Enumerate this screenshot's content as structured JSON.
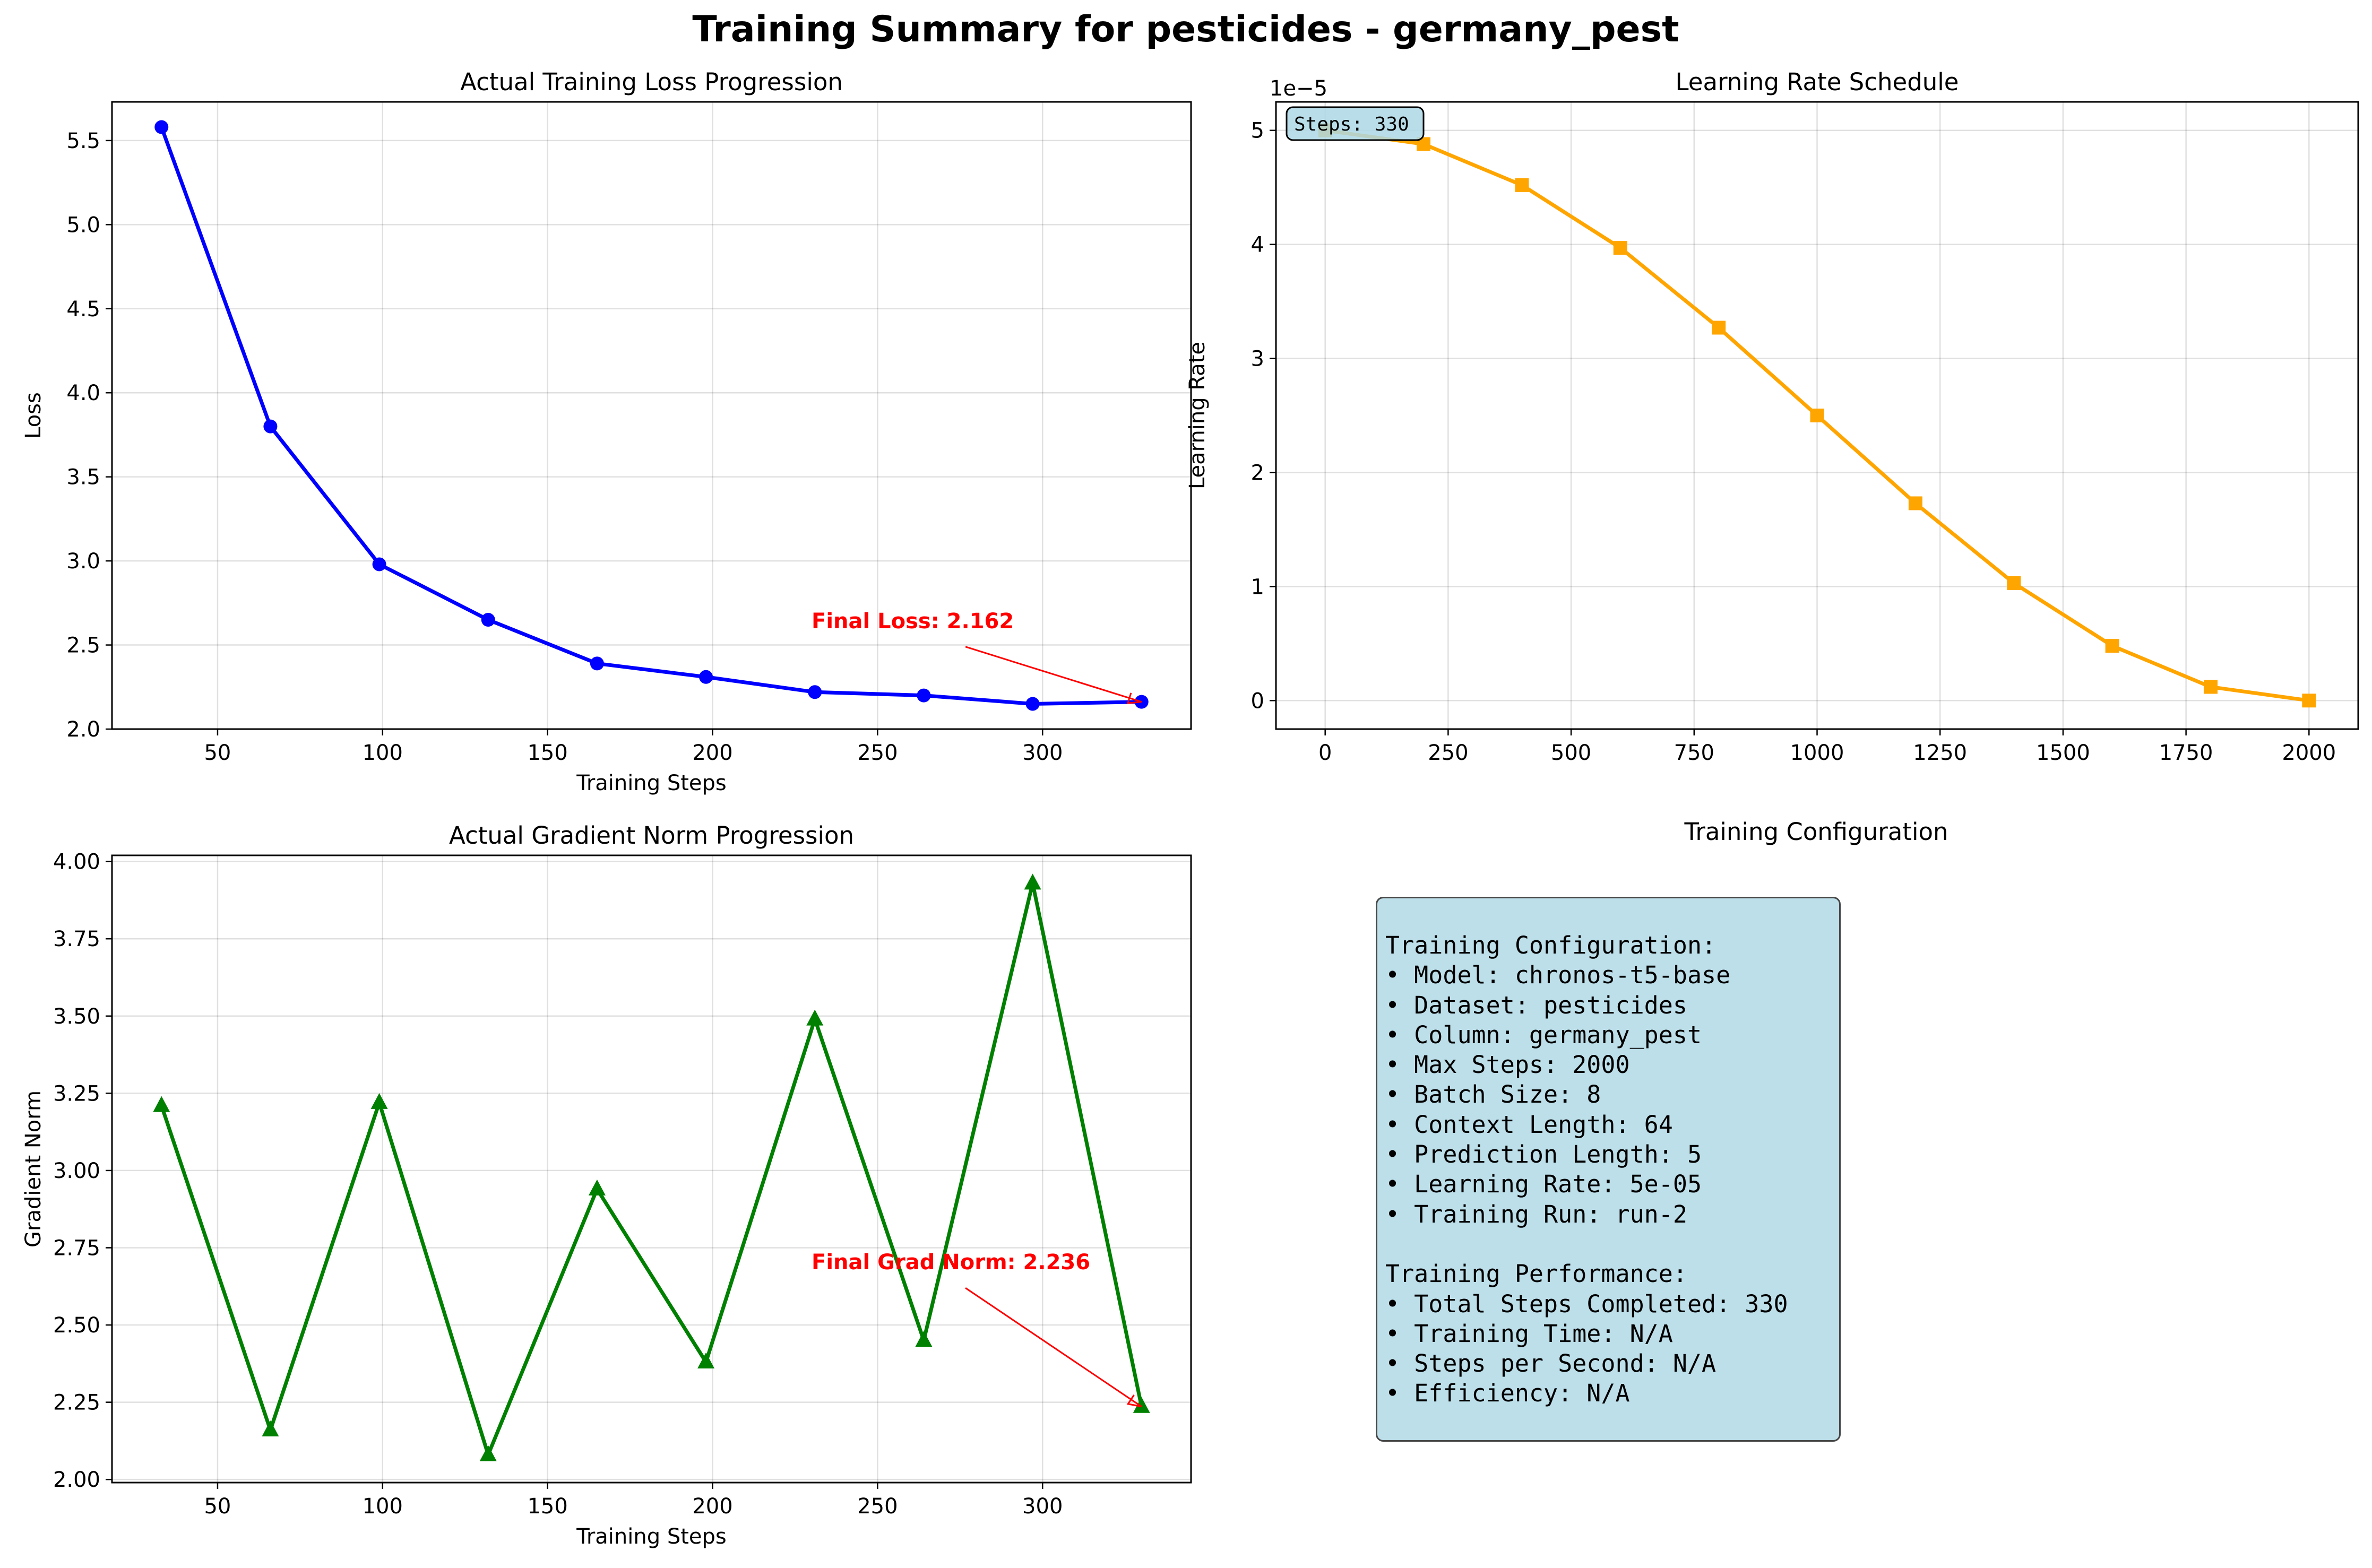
{
  "figure_title": "Training Summary for pesticides - germany_pest",
  "chart_data": [
    {
      "type": "line",
      "title": "Actual Training Loss Progression",
      "xlabel": "Training Steps",
      "ylabel": "Loss",
      "x": [
        33,
        66,
        99,
        132,
        165,
        198,
        231,
        264,
        297,
        330
      ],
      "series": [
        {
          "values": [
            5.58,
            3.8,
            2.98,
            2.65,
            2.39,
            2.31,
            2.22,
            2.2,
            2.15,
            2.162
          ],
          "color": "#0000ff",
          "marker": "circle"
        }
      ],
      "xlim": [
        18,
        345
      ],
      "ylim": [
        2.0,
        5.73
      ],
      "xticks": [
        50,
        100,
        150,
        200,
        250,
        300
      ],
      "yticks": [
        2.0,
        2.5,
        3.0,
        3.5,
        4.0,
        4.5,
        5.0,
        5.5
      ],
      "ytick_format": "0.0",
      "grid": true,
      "annotation": {
        "text": "Final Loss: 2.162",
        "color": "#ff0000",
        "text_x": 230,
        "text_y": 2.6,
        "arrow_x": 330,
        "arrow_y": 2.162
      }
    },
    {
      "type": "line",
      "title": "Learning Rate Schedule",
      "xlabel": "",
      "ylabel": "Learning Rate",
      "x": [
        0,
        200,
        400,
        600,
        800,
        1000,
        1200,
        1400,
        1600,
        1800,
        2000
      ],
      "series": [
        {
          "values": [
            5.0,
            4.88,
            4.52,
            3.97,
            3.27,
            2.5,
            1.73,
            1.03,
            0.48,
            0.12,
            0.0
          ],
          "color": "#ffa500",
          "marker": "square"
        }
      ],
      "y_multiplier": "1e−5",
      "xlim": [
        -100,
        2100
      ],
      "ylim": [
        -0.25,
        5.25
      ],
      "xticks": [
        0,
        250,
        500,
        750,
        1000,
        1250,
        1500,
        1750,
        2000
      ],
      "yticks": [
        0,
        1,
        2,
        3,
        4,
        5
      ],
      "ytick_format": "0",
      "grid": true,
      "badge": "Steps: 330"
    },
    {
      "type": "line",
      "title": "Actual Gradient Norm Progression",
      "xlabel": "Training Steps",
      "ylabel": "Gradient Norm",
      "x": [
        33,
        66,
        99,
        132,
        165,
        198,
        231,
        264,
        297,
        330
      ],
      "series": [
        {
          "values": [
            3.21,
            2.16,
            3.22,
            2.08,
            2.94,
            2.38,
            3.49,
            2.45,
            3.93,
            2.236
          ],
          "color": "#008000",
          "marker": "triangle"
        }
      ],
      "xlim": [
        18,
        345
      ],
      "ylim": [
        1.99,
        4.02
      ],
      "xticks": [
        50,
        100,
        150,
        200,
        250,
        300
      ],
      "yticks": [
        2.0,
        2.25,
        2.5,
        2.75,
        3.0,
        3.25,
        3.5,
        3.75,
        4.0
      ],
      "ytick_format": "0.00",
      "grid": true,
      "annotation": {
        "text": "Final Grad Norm: 2.236",
        "color": "#ff0000",
        "text_x": 230,
        "text_y": 2.68,
        "arrow_x": 330,
        "arrow_y": 2.236
      }
    }
  ],
  "config_panel": {
    "title": "Training Configuration",
    "lines": [
      "Training Configuration:",
      "• Model: chronos-t5-base",
      "• Dataset: pesticides",
      "• Column: germany_pest",
      "• Max Steps: 2000",
      "• Batch Size: 8",
      "• Context Length: 64",
      "• Prediction Length: 5",
      "• Learning Rate: 5e-05",
      "• Training Run: run-2",
      "",
      "Training Performance:",
      "• Total Steps Completed: 330",
      "• Training Time: N/A",
      "• Steps per Second: N/A",
      "• Efficiency: N/A"
    ],
    "background_color": "#add8e6"
  }
}
